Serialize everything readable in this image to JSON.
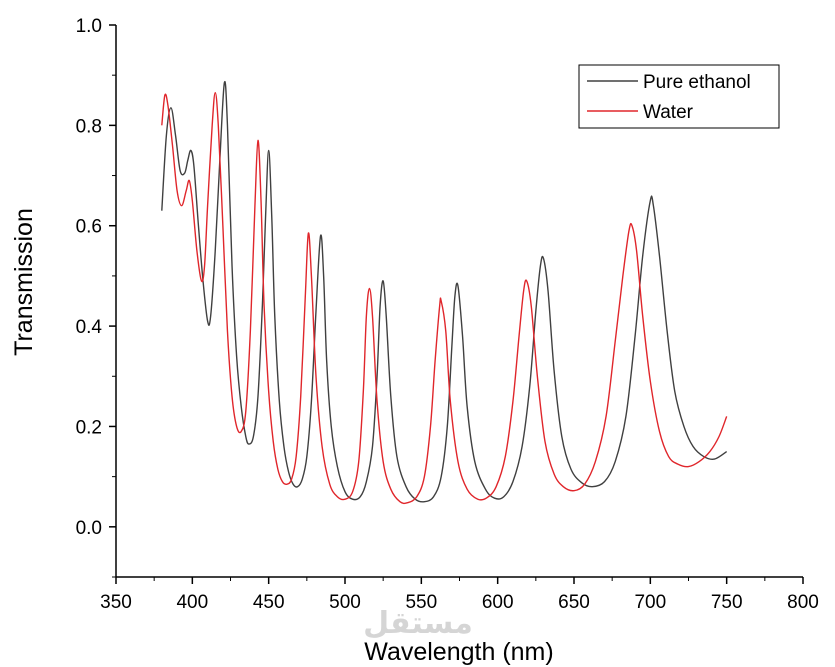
{
  "chart_data": {
    "type": "line",
    "title": "",
    "xlabel": "Wavelength (nm)",
    "ylabel": "Transmission",
    "xlim": [
      350,
      800
    ],
    "ylim": [
      -0.1,
      1.0
    ],
    "x_ticks": [
      350,
      400,
      450,
      500,
      550,
      600,
      650,
      700,
      750,
      800
    ],
    "y_ticks": [
      0.0,
      0.2,
      0.4,
      0.6,
      0.8,
      1.0
    ],
    "x_tick_labels": [
      "350",
      "400",
      "450",
      "500",
      "550",
      "600",
      "650",
      "700",
      "750",
      "800"
    ],
    "y_tick_labels": [
      "0.0",
      "0.2",
      "0.4",
      "0.6",
      "0.8",
      "1.0"
    ],
    "grid": false,
    "legend": {
      "placement": "top-right"
    },
    "series": [
      {
        "name": "Pure ethanol",
        "color": "#404040",
        "points": [
          [
            380,
            0.63
          ],
          [
            383,
            0.78
          ],
          [
            386,
            0.835
          ],
          [
            389,
            0.78
          ],
          [
            392,
            0.71
          ],
          [
            395,
            0.705
          ],
          [
            397,
            0.73
          ],
          [
            399,
            0.75
          ],
          [
            401,
            0.72
          ],
          [
            404,
            0.6
          ],
          [
            407,
            0.49
          ],
          [
            410,
            0.41
          ],
          [
            412,
            0.42
          ],
          [
            415,
            0.55
          ],
          [
            418,
            0.73
          ],
          [
            421,
            0.885
          ],
          [
            423,
            0.8
          ],
          [
            426,
            0.52
          ],
          [
            429,
            0.34
          ],
          [
            432,
            0.24
          ],
          [
            435,
            0.18
          ],
          [
            437,
            0.165
          ],
          [
            440,
            0.18
          ],
          [
            443,
            0.26
          ],
          [
            446,
            0.45
          ],
          [
            448,
            0.62
          ],
          [
            450,
            0.75
          ],
          [
            452,
            0.62
          ],
          [
            454,
            0.42
          ],
          [
            457,
            0.25
          ],
          [
            460,
            0.16
          ],
          [
            463,
            0.11
          ],
          [
            466,
            0.085
          ],
          [
            469,
            0.08
          ],
          [
            472,
            0.095
          ],
          [
            475,
            0.14
          ],
          [
            478,
            0.25
          ],
          [
            481,
            0.43
          ],
          [
            484,
            0.58
          ],
          [
            486,
            0.5
          ],
          [
            488,
            0.33
          ],
          [
            491,
            0.2
          ],
          [
            495,
            0.12
          ],
          [
            500,
            0.07
          ],
          [
            505,
            0.055
          ],
          [
            510,
            0.06
          ],
          [
            514,
            0.09
          ],
          [
            518,
            0.16
          ],
          [
            521,
            0.3
          ],
          [
            523,
            0.44
          ],
          [
            525,
            0.49
          ],
          [
            527,
            0.42
          ],
          [
            530,
            0.26
          ],
          [
            534,
            0.14
          ],
          [
            540,
            0.08
          ],
          [
            546,
            0.055
          ],
          [
            552,
            0.05
          ],
          [
            558,
            0.06
          ],
          [
            563,
            0.1
          ],
          [
            567,
            0.2
          ],
          [
            570,
            0.36
          ],
          [
            572,
            0.46
          ],
          [
            574,
            0.48
          ],
          [
            577,
            0.38
          ],
          [
            580,
            0.24
          ],
          [
            585,
            0.13
          ],
          [
            592,
            0.075
          ],
          [
            598,
            0.057
          ],
          [
            604,
            0.06
          ],
          [
            610,
            0.09
          ],
          [
            616,
            0.16
          ],
          [
            621,
            0.28
          ],
          [
            625,
            0.43
          ],
          [
            628,
            0.52
          ],
          [
            630,
            0.535
          ],
          [
            633,
            0.47
          ],
          [
            637,
            0.31
          ],
          [
            642,
            0.18
          ],
          [
            648,
            0.115
          ],
          [
            655,
            0.088
          ],
          [
            662,
            0.08
          ],
          [
            670,
            0.09
          ],
          [
            677,
            0.13
          ],
          [
            684,
            0.22
          ],
          [
            690,
            0.38
          ],
          [
            695,
            0.54
          ],
          [
            700,
            0.65
          ],
          [
            702,
            0.64
          ],
          [
            706,
            0.54
          ],
          [
            711,
            0.39
          ],
          [
            716,
            0.27
          ],
          [
            722,
            0.2
          ],
          [
            728,
            0.16
          ],
          [
            735,
            0.14
          ],
          [
            742,
            0.135
          ],
          [
            750,
            0.15
          ]
        ]
      },
      {
        "name": "Water",
        "color": "#e0262b",
        "points": [
          [
            380,
            0.8
          ],
          [
            382,
            0.86
          ],
          [
            384,
            0.84
          ],
          [
            387,
            0.76
          ],
          [
            390,
            0.67
          ],
          [
            393,
            0.64
          ],
          [
            396,
            0.67
          ],
          [
            398,
            0.69
          ],
          [
            400,
            0.65
          ],
          [
            403,
            0.55
          ],
          [
            406,
            0.49
          ],
          [
            408,
            0.52
          ],
          [
            410,
            0.64
          ],
          [
            413,
            0.8
          ],
          [
            415,
            0.865
          ],
          [
            417,
            0.8
          ],
          [
            420,
            0.6
          ],
          [
            423,
            0.39
          ],
          [
            426,
            0.26
          ],
          [
            429,
            0.2
          ],
          [
            432,
            0.19
          ],
          [
            435,
            0.23
          ],
          [
            438,
            0.39
          ],
          [
            441,
            0.64
          ],
          [
            443,
            0.77
          ],
          [
            445,
            0.65
          ],
          [
            447,
            0.44
          ],
          [
            450,
            0.27
          ],
          [
            453,
            0.17
          ],
          [
            456,
            0.115
          ],
          [
            459,
            0.09
          ],
          [
            462,
            0.085
          ],
          [
            465,
            0.095
          ],
          [
            468,
            0.14
          ],
          [
            471,
            0.26
          ],
          [
            474,
            0.46
          ],
          [
            476,
            0.585
          ],
          [
            478,
            0.5
          ],
          [
            481,
            0.3
          ],
          [
            485,
            0.16
          ],
          [
            490,
            0.085
          ],
          [
            495,
            0.06
          ],
          [
            500,
            0.055
          ],
          [
            505,
            0.07
          ],
          [
            509,
            0.13
          ],
          [
            512,
            0.27
          ],
          [
            514,
            0.42
          ],
          [
            516,
            0.475
          ],
          [
            518,
            0.42
          ],
          [
            521,
            0.25
          ],
          [
            525,
            0.13
          ],
          [
            530,
            0.075
          ],
          [
            536,
            0.05
          ],
          [
            541,
            0.048
          ],
          [
            547,
            0.06
          ],
          [
            552,
            0.1
          ],
          [
            556,
            0.2
          ],
          [
            559,
            0.33
          ],
          [
            562,
            0.44
          ],
          [
            563,
            0.45
          ],
          [
            566,
            0.39
          ],
          [
            569,
            0.25
          ],
          [
            574,
            0.13
          ],
          [
            580,
            0.075
          ],
          [
            587,
            0.055
          ],
          [
            593,
            0.058
          ],
          [
            599,
            0.08
          ],
          [
            605,
            0.14
          ],
          [
            610,
            0.25
          ],
          [
            614,
            0.38
          ],
          [
            617,
            0.47
          ],
          [
            619,
            0.49
          ],
          [
            622,
            0.44
          ],
          [
            626,
            0.3
          ],
          [
            631,
            0.17
          ],
          [
            637,
            0.105
          ],
          [
            643,
            0.08
          ],
          [
            650,
            0.072
          ],
          [
            657,
            0.085
          ],
          [
            664,
            0.13
          ],
          [
            671,
            0.22
          ],
          [
            677,
            0.37
          ],
          [
            682,
            0.5
          ],
          [
            686,
            0.59
          ],
          [
            688,
            0.6
          ],
          [
            691,
            0.55
          ],
          [
            695,
            0.42
          ],
          [
            700,
            0.29
          ],
          [
            706,
            0.19
          ],
          [
            712,
            0.14
          ],
          [
            718,
            0.125
          ],
          [
            725,
            0.12
          ],
          [
            732,
            0.13
          ],
          [
            739,
            0.15
          ],
          [
            745,
            0.18
          ],
          [
            750,
            0.22
          ]
        ]
      }
    ]
  },
  "watermark": {
    "text": "مستقل"
  }
}
